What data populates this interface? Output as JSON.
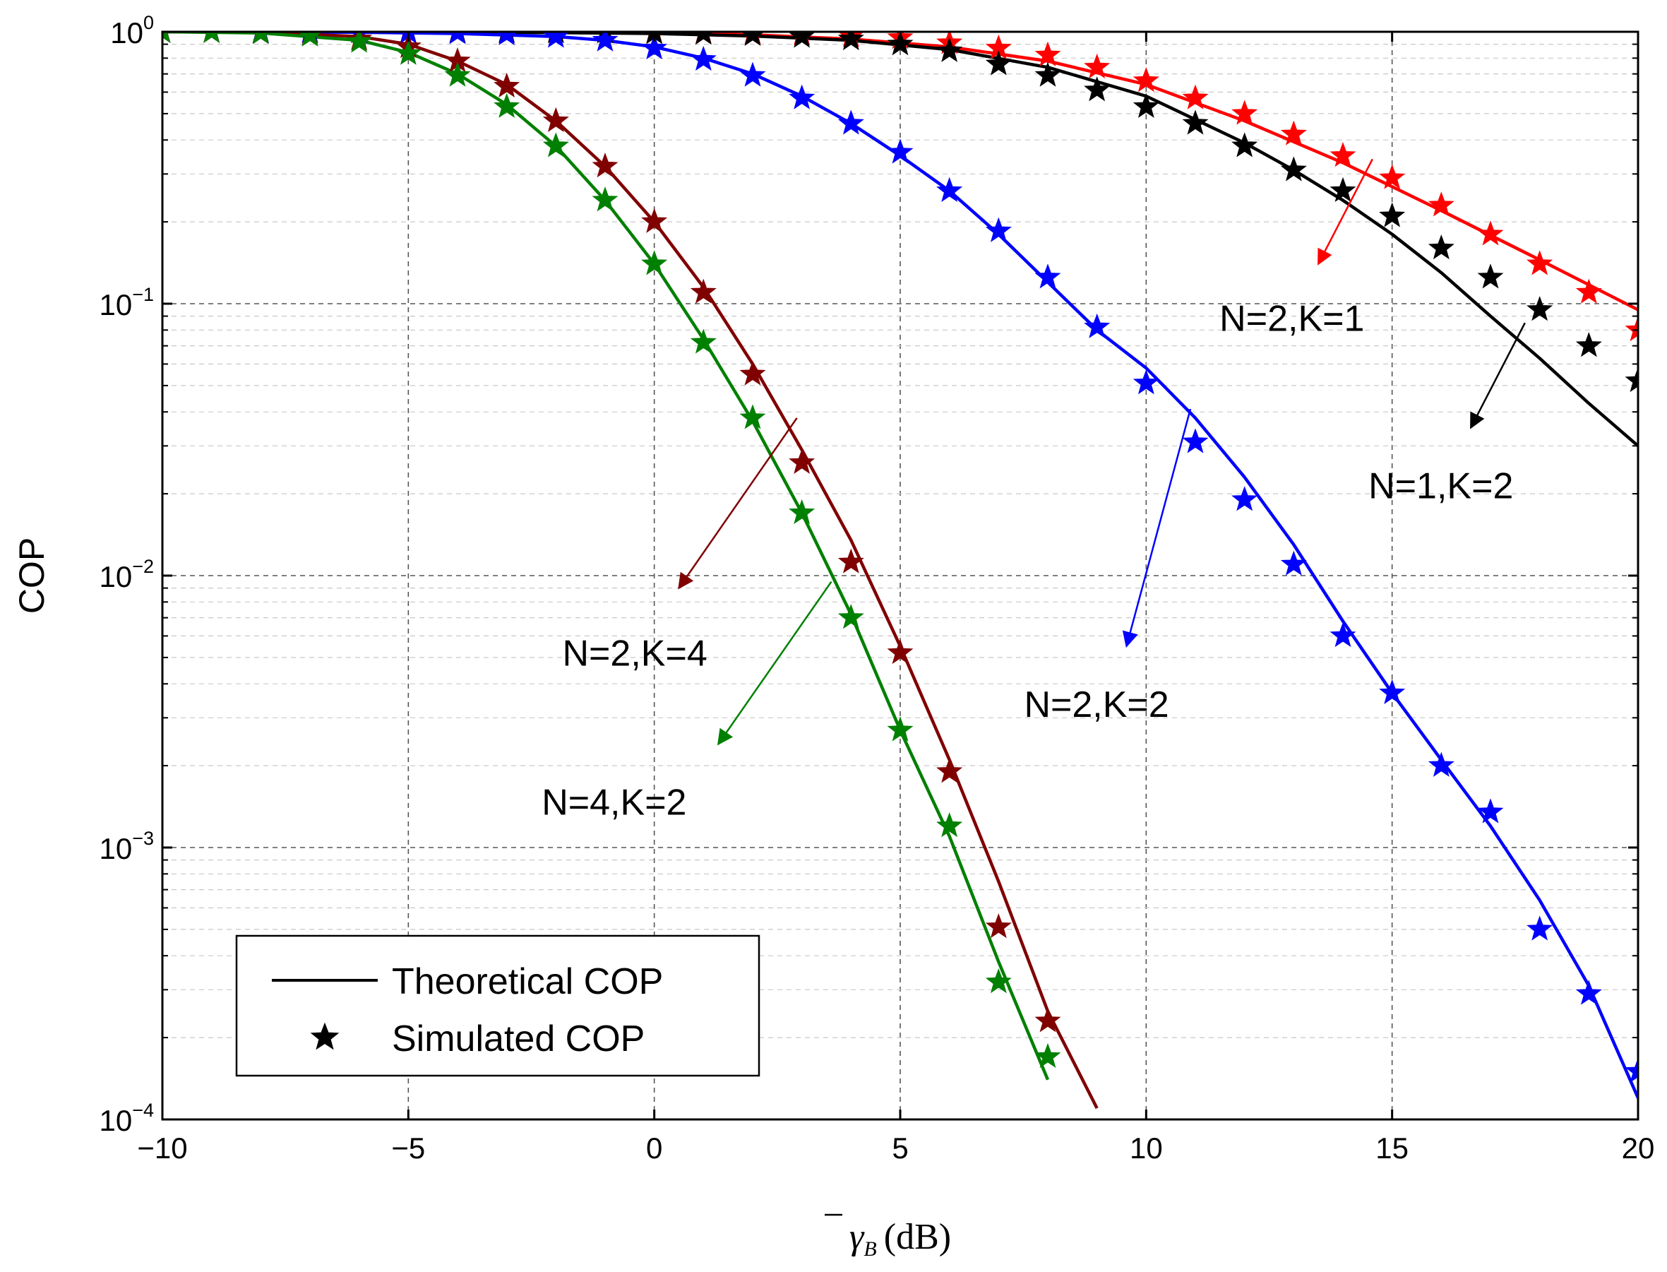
{
  "chart_data": {
    "type": "line",
    "title": "",
    "xlabel_symbol": "γ",
    "xlabel_subscript": "B",
    "xlabel_unit": "(dB)",
    "ylabel": "COP",
    "xlim": [
      -10,
      20
    ],
    "ylim": [
      0.0001,
      1
    ],
    "yscale": "log",
    "xticks": [
      -10,
      -5,
      0,
      5,
      10,
      15,
      20
    ],
    "xtick_labels": [
      "−10",
      "−5",
      "0",
      "5",
      "10",
      "15",
      "20"
    ],
    "yticks": [
      0.0001,
      0.001,
      0.01,
      0.1,
      1
    ],
    "ytick_base": "10",
    "ytick_exponents": [
      "−4",
      "−3",
      "−2",
      "−1",
      "0"
    ],
    "grid": true,
    "legend": {
      "position": "bottom-left",
      "entries": [
        {
          "label": "Theoretical COP",
          "marker": "line"
        },
        {
          "label": "Simulated COP",
          "marker": "star"
        }
      ]
    },
    "series": [
      {
        "color": "#ff0000",
        "theory": {
          "x": [
            -10,
            -6,
            -4,
            -2,
            0,
            2,
            4,
            6,
            8,
            10,
            12,
            14,
            16,
            18,
            20
          ],
          "y": [
            1.0,
            0.999,
            0.998,
            0.995,
            0.99,
            0.975,
            0.94,
            0.88,
            0.78,
            0.64,
            0.47,
            0.33,
            0.22,
            0.145,
            0.095
          ]
        },
        "sim": {
          "x": [
            -10,
            -9,
            -8,
            -7,
            -6,
            -5,
            -4,
            -3,
            -2,
            -1,
            0,
            1,
            2,
            3,
            4,
            5,
            6,
            7,
            8,
            9,
            10,
            11,
            12,
            13,
            14,
            15,
            16,
            17,
            18,
            19,
            20
          ],
          "y": [
            1.0,
            1.0,
            1.0,
            1.0,
            1.0,
            1.0,
            1.0,
            0.999,
            0.999,
            0.998,
            0.996,
            0.993,
            0.99,
            0.98,
            0.965,
            0.95,
            0.91,
            0.87,
            0.82,
            0.74,
            0.66,
            0.57,
            0.5,
            0.42,
            0.35,
            0.29,
            0.23,
            0.18,
            0.14,
            0.11,
            0.08
          ]
        }
      },
      {
        "color": "#000000",
        "theory": {
          "x": [
            -10,
            -6,
            -4,
            -2,
            0,
            2,
            4,
            6,
            8,
            10,
            12,
            13,
            14,
            15,
            16,
            17,
            18,
            19,
            20
          ],
          "y": [
            1.0,
            0.999,
            0.997,
            0.993,
            0.985,
            0.965,
            0.93,
            0.86,
            0.74,
            0.58,
            0.39,
            0.31,
            0.24,
            0.18,
            0.13,
            0.09,
            0.063,
            0.043,
            0.03
          ]
        },
        "sim": {
          "x": [
            -10,
            -9,
            -8,
            -7,
            -6,
            -5,
            -4,
            -3,
            -2,
            -1,
            0,
            1,
            2,
            3,
            4,
            5,
            6,
            7,
            8,
            9,
            10,
            11,
            12,
            13,
            14,
            15,
            16,
            17,
            18,
            19,
            20
          ],
          "y": [
            1.0,
            1.0,
            1.0,
            1.0,
            1.0,
            1.0,
            1.0,
            0.999,
            0.998,
            0.996,
            0.99,
            0.985,
            0.975,
            0.96,
            0.94,
            0.9,
            0.85,
            0.76,
            0.69,
            0.61,
            0.53,
            0.46,
            0.38,
            0.31,
            0.26,
            0.21,
            0.16,
            0.125,
            0.095,
            0.07,
            0.052
          ]
        }
      },
      {
        "color": "#0000ff",
        "theory": {
          "x": [
            -10,
            -8,
            -6,
            -4,
            -2,
            -1,
            0,
            1,
            2,
            3,
            4,
            5,
            6,
            7,
            8,
            9,
            10,
            11,
            12,
            13,
            14,
            15,
            16,
            17,
            18,
            19,
            20
          ],
          "y": [
            1.0,
            0.999,
            0.995,
            0.985,
            0.96,
            0.93,
            0.88,
            0.8,
            0.7,
            0.58,
            0.46,
            0.35,
            0.26,
            0.18,
            0.12,
            0.08,
            0.058,
            0.038,
            0.023,
            0.013,
            0.0068,
            0.0037,
            0.0021,
            0.0012,
            0.00064,
            0.00031,
            0.00012
          ]
        },
        "sim": {
          "x": [
            -10,
            -9,
            -8,
            -7,
            -6,
            -5,
            -4,
            -3,
            -2,
            -1,
            0,
            1,
            2,
            3,
            4,
            5,
            6,
            7,
            8,
            9,
            10,
            11,
            12,
            13,
            14,
            15,
            16,
            17,
            18,
            19,
            20
          ],
          "y": [
            1.0,
            1.0,
            1.0,
            0.999,
            0.998,
            0.995,
            0.99,
            0.98,
            0.96,
            0.93,
            0.87,
            0.79,
            0.69,
            0.57,
            0.46,
            0.36,
            0.26,
            0.185,
            0.125,
            0.082,
            0.051,
            0.031,
            0.019,
            0.011,
            0.006,
            0.0037,
            0.002,
            0.00135,
            0.0005,
            0.00029,
            0.00015
          ]
        }
      },
      {
        "color": "#800000",
        "theory": {
          "x": [
            -10,
            -8,
            -6,
            -5,
            -4,
            -3,
            -2,
            -1,
            0,
            1,
            2,
            3,
            4,
            5,
            6,
            7,
            8,
            9
          ],
          "y": [
            1.0,
            0.995,
            0.96,
            0.9,
            0.78,
            0.64,
            0.47,
            0.32,
            0.2,
            0.115,
            0.06,
            0.029,
            0.0135,
            0.0055,
            0.0021,
            0.00075,
            0.00025,
            0.00011
          ]
        },
        "sim": {
          "x": [
            -10,
            -9,
            -8,
            -7,
            -6,
            -5,
            -4,
            -3,
            -2,
            -1,
            0,
            1,
            2,
            3,
            4,
            5,
            6,
            7,
            8
          ],
          "y": [
            1.0,
            1.0,
            0.99,
            0.98,
            0.94,
            0.88,
            0.78,
            0.63,
            0.47,
            0.32,
            0.2,
            0.11,
            0.055,
            0.026,
            0.0112,
            0.0052,
            0.0019,
            0.00051,
            0.00023
          ]
        }
      },
      {
        "color": "#008000",
        "theory": {
          "x": [
            -10,
            -8,
            -6,
            -5,
            -4,
            -3,
            -2,
            -1,
            0,
            1,
            2,
            3,
            4,
            5,
            6,
            7,
            8
          ],
          "y": [
            1.0,
            0.99,
            0.93,
            0.84,
            0.7,
            0.54,
            0.38,
            0.24,
            0.14,
            0.074,
            0.037,
            0.017,
            0.0072,
            0.0027,
            0.0011,
            0.00038,
            0.00014
          ]
        },
        "sim": {
          "x": [
            -10,
            -9,
            -8,
            -7,
            -6,
            -5,
            -4,
            -3,
            -2,
            -1,
            0,
            1,
            2,
            3,
            4,
            5,
            6,
            7,
            8
          ],
          "y": [
            1.0,
            1.0,
            0.99,
            0.97,
            0.92,
            0.83,
            0.69,
            0.53,
            0.38,
            0.24,
            0.14,
            0.072,
            0.038,
            0.017,
            0.007,
            0.0027,
            0.0012,
            0.00032,
            0.00017
          ]
        }
      }
    ],
    "annotations": [
      {
        "text": "N=2,K=1",
        "from": [
          14.6,
          0.34
        ],
        "to": [
          13.5,
          0.14
        ]
      },
      {
        "text": "N=1,K=2",
        "from": [
          17.7,
          0.085
        ],
        "to": [
          16.6,
          0.035
        ]
      },
      {
        "text": "N=2,K=2",
        "from": [
          10.9,
          0.041
        ],
        "to": [
          9.6,
          0.0055
        ]
      },
      {
        "text": "N=2,K=4",
        "from": [
          2.9,
          0.038
        ],
        "to": [
          0.5,
          0.009
        ]
      },
      {
        "text": "N=4,K=2",
        "from": [
          3.6,
          0.0095
        ],
        "to": [
          1.3,
          0.0024
        ]
      }
    ]
  }
}
